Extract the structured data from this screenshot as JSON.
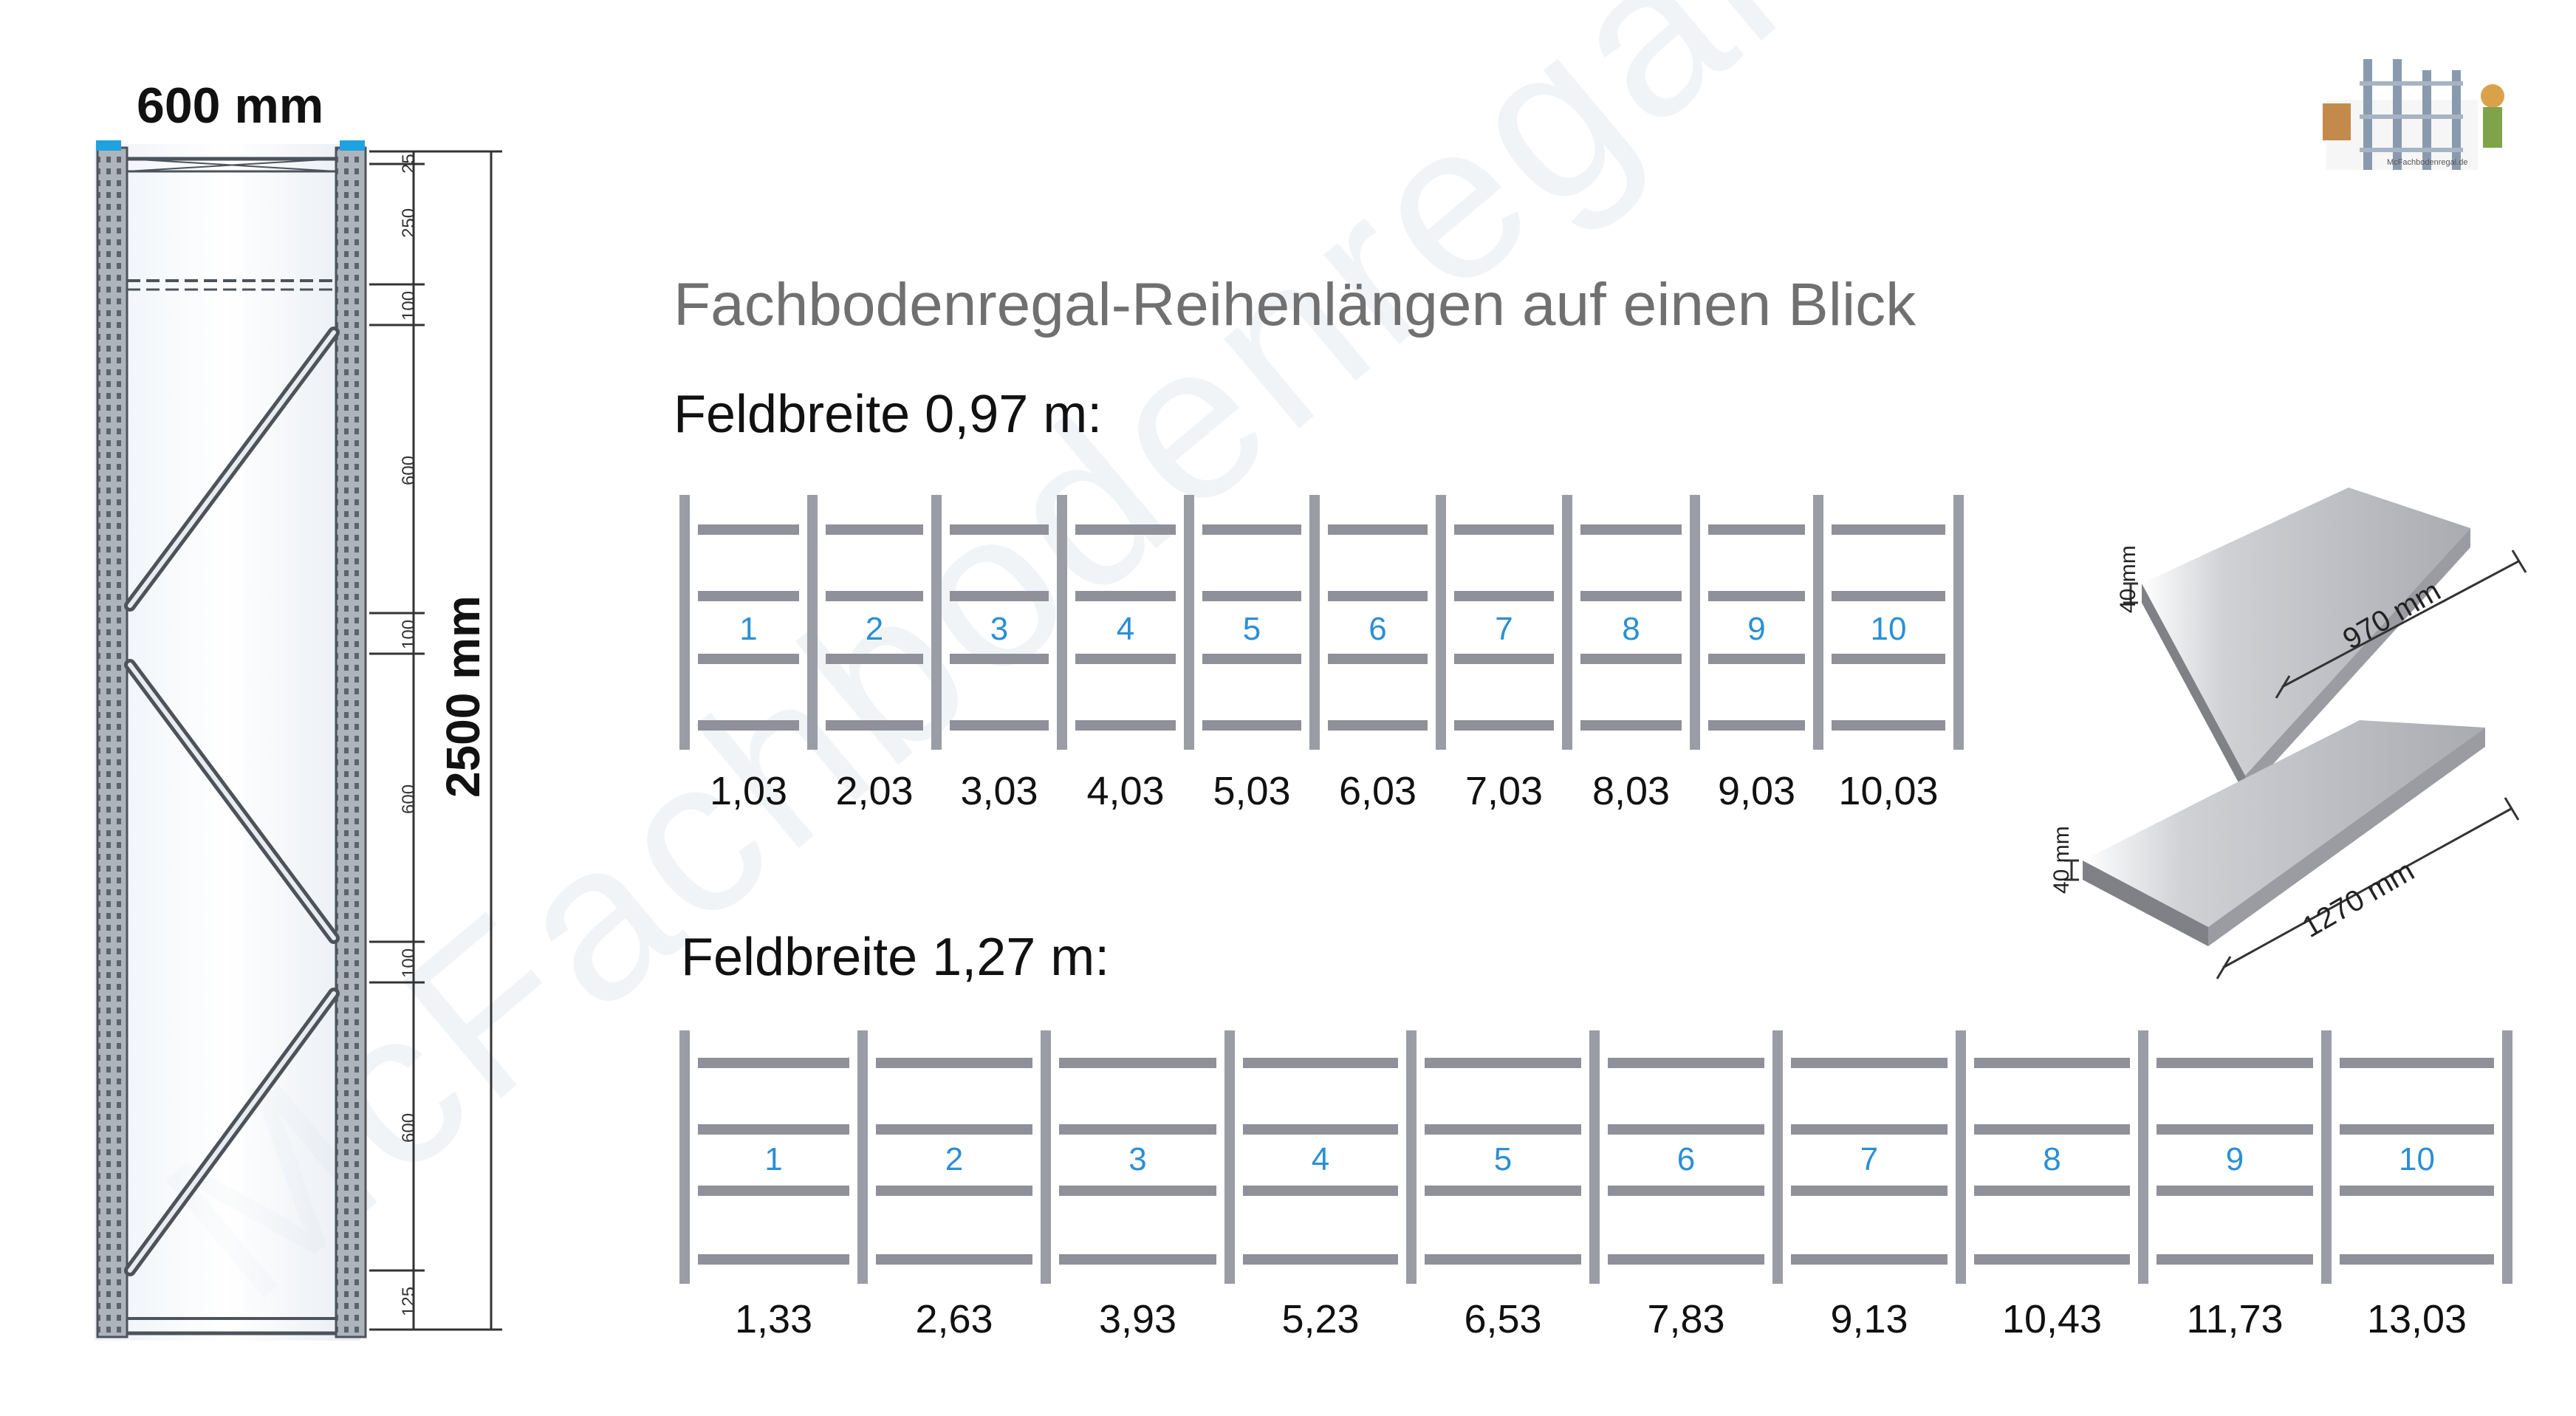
{
  "frame": {
    "width_label": "600 mm",
    "height_label": "2500 mm",
    "segments": [
      "25",
      "250",
      "100",
      "600",
      "100",
      "600",
      "100",
      "600",
      "125"
    ]
  },
  "title": "Fachbodenregal-Reihenlängen auf einen Blick",
  "watermark": "McFachbodenregal.de",
  "logo_text": "McFachbodenregal.de",
  "rows": [
    {
      "label": "Feldbreite 0,97 m:",
      "fields": [
        "1",
        "2",
        "3",
        "4",
        "5",
        "6",
        "7",
        "8",
        "9",
        "10"
      ],
      "lengths": [
        "1,03",
        "2,03",
        "3,03",
        "4,03",
        "5,03",
        "6,03",
        "7,03",
        "8,03",
        "9,03",
        "10,03"
      ]
    },
    {
      "label": "Feldbreite 1,27 m:",
      "fields": [
        "1",
        "2",
        "3",
        "4",
        "5",
        "6",
        "7",
        "8",
        "9",
        "10"
      ],
      "lengths": [
        "1,33",
        "2,63",
        "3,93",
        "5,23",
        "6,53",
        "7,83",
        "9,13",
        "10,43",
        "11,73",
        "13,03"
      ]
    }
  ],
  "shelves": [
    {
      "length_label": "970 mm",
      "thickness_label": "40 mm"
    },
    {
      "length_label": "1270 mm",
      "thickness_label": "40 mm"
    }
  ],
  "colors": {
    "upright": "#9a9ca6",
    "shelf": "#8f9099",
    "field_number": "#2a8fd6",
    "frame_cap": "#1fa3e0",
    "title": "#707070"
  }
}
